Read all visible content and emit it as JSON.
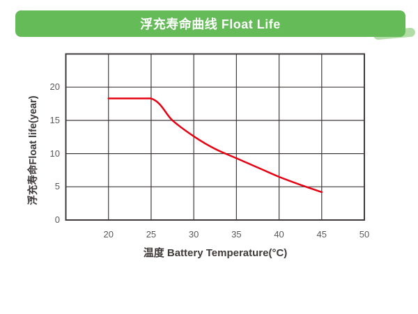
{
  "banner": {
    "title": "浮充寿命曲线 Float Life",
    "bg_color": "#65bb58",
    "accent_color": "#b2dda6",
    "text_color": "#ffffff"
  },
  "chart_data": {
    "type": "line",
    "title": "浮充寿命曲线 Float Life",
    "xlabel": "温度 Battery Temperature(°C)",
    "ylabel": "浮充寿命Float life(year)",
    "xlim": [
      15,
      50
    ],
    "ylim": [
      0,
      25
    ],
    "x_tick_step": 5,
    "y_tick_step": 5,
    "x_tick_values": [
      20,
      25,
      30,
      35,
      40,
      45,
      50
    ],
    "x_tick_labels": [
      "20",
      "25",
      "30",
      "35",
      "40",
      "45",
      "50"
    ],
    "y_tick_values": [
      0,
      5,
      10,
      15,
      20
    ],
    "y_tick_labels": [
      "0",
      "5",
      "10",
      "15",
      "20"
    ],
    "grid": true,
    "legend": "none",
    "line_color": "#e60012",
    "grid_color": "#3e3a39",
    "tick_color": "#595757",
    "series": [
      {
        "name": "Float Life",
        "points": [
          [
            20,
            18.3
          ],
          [
            25,
            18.3
          ],
          [
            27.5,
            15.0
          ],
          [
            30,
            12.6
          ],
          [
            32.5,
            10.7
          ],
          [
            35,
            9.3
          ],
          [
            37.5,
            7.9
          ],
          [
            40,
            6.5
          ],
          [
            42.5,
            5.3
          ],
          [
            45,
            4.2
          ]
        ]
      }
    ]
  }
}
